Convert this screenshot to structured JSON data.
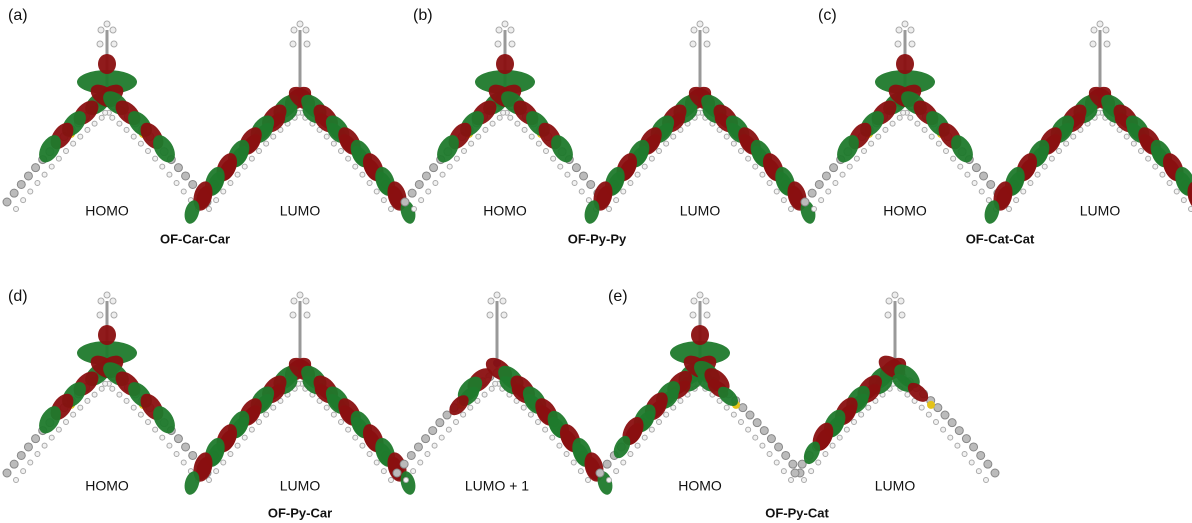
{
  "panels": [
    {
      "label": "(a)",
      "orbitals": [
        "HOMO",
        "LUMO"
      ],
      "name": "OF-Car-Car"
    },
    {
      "label": "(b)",
      "orbitals": [
        "HOMO",
        "LUMO"
      ],
      "name": "OF-Py-Py"
    },
    {
      "label": "(c)",
      "orbitals": [
        "HOMO",
        "LUMO"
      ],
      "name": "OF-Cat-Cat"
    },
    {
      "label": "(d)",
      "orbitals": [
        "HOMO",
        "LUMO",
        "LUMO + 1"
      ],
      "name": "OF-Py-Car"
    },
    {
      "label": "(e)",
      "orbitals": [
        "HOMO",
        "LUMO"
      ],
      "name": "OF-Py-Cat"
    }
  ]
}
